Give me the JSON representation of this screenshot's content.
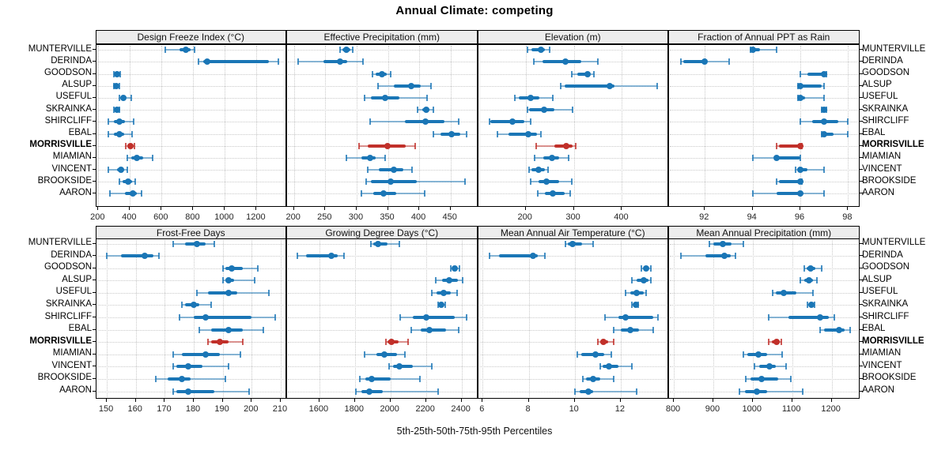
{
  "chart_data": {
    "type": "multi-panel percentile dotplot",
    "title": "Annual Climate: competing",
    "xlabel": "5th-25th-50th-75th-95th Percentiles",
    "percentiles": [
      5,
      25,
      50,
      75,
      95
    ],
    "legend_position": "none",
    "grid": "dotted",
    "categories": [
      "MUNTERVILLE",
      "DERINDA",
      "GOODSON",
      "ALSUP",
      "USEFUL",
      "SKRAINKA",
      "SHIRCLIFF",
      "EBAL",
      "MORRISVILLE",
      "MIAMIAN",
      "VINCENT",
      "BROOKSIDE",
      "AARON"
    ],
    "highlight": "MORRISVILLE",
    "colors": {
      "series": "#1a76b6",
      "highlight": "#c1302a",
      "gridline": "#c9c9c9",
      "strip_bg": "#ededed",
      "border": "#000000"
    },
    "panels": [
      {
        "label": "Design Freeze Index (°C)",
        "grid_row": 0,
        "grid_col": 0,
        "ticks": [
          200,
          400,
          600,
          800,
          1000,
          1200
        ],
        "xlim": [
          186,
          1393
        ],
        "series": [
          [
            625,
            715,
            755,
            785,
            810
          ],
          [
            835,
            865,
            890,
            1280,
            1340
          ],
          [
            300,
            306,
            317,
            328,
            338
          ],
          [
            300,
            306,
            315,
            326,
            335
          ],
          [
            333,
            342,
            358,
            380,
            408
          ],
          [
            300,
            306,
            317,
            326,
            333
          ],
          [
            262,
            300,
            333,
            367,
            425
          ],
          [
            262,
            300,
            333,
            362,
            412
          ],
          [
            375,
            387,
            405,
            420,
            430
          ],
          [
            383,
            408,
            442,
            483,
            542
          ],
          [
            262,
            317,
            342,
            362,
            383
          ],
          [
            333,
            355,
            388,
            412,
            433
          ],
          [
            272,
            367,
            417,
            442,
            475
          ]
        ]
      },
      {
        "label": "Effective Precipitation (mm)",
        "grid_row": 0,
        "grid_col": 1,
        "ticks": [
          200,
          250,
          300,
          350,
          400,
          450
        ],
        "xlim": [
          189,
          494
        ],
        "series": [
          [
            274,
            277,
            284,
            290,
            294
          ],
          [
            207,
            247,
            273,
            285,
            310
          ],
          [
            325,
            331,
            340,
            348,
            355
          ],
          [
            334,
            360,
            387,
            402,
            419
          ],
          [
            313,
            323,
            346,
            369,
            413
          ],
          [
            397,
            405,
            411,
            416,
            423
          ],
          [
            321,
            377,
            410,
            440,
            463
          ],
          [
            423,
            434,
            451,
            466,
            475
          ],
          [
            304,
            318,
            349,
            378,
            394
          ],
          [
            284,
            308,
            321,
            331,
            346
          ],
          [
            318,
            335,
            360,
            375,
            389
          ],
          [
            315,
            323,
            355,
            396,
            473
          ],
          [
            308,
            327,
            343,
            363,
            409
          ]
        ]
      },
      {
        "label": "Elevation (m)",
        "grid_row": 0,
        "grid_col": 2,
        "ticks": [
          200,
          300,
          400
        ],
        "xlim": [
          101,
          498
        ],
        "series": [
          [
            204,
            212,
            231,
            240,
            249
          ],
          [
            216,
            235,
            282,
            315,
            350
          ],
          [
            296,
            308,
            329,
            336,
            342
          ],
          [
            273,
            281,
            374,
            385,
            474
          ],
          [
            178,
            185,
            211,
            229,
            256
          ],
          [
            204,
            207,
            238,
            259,
            297
          ],
          [
            124,
            127,
            173,
            198,
            211
          ],
          [
            142,
            165,
            206,
            223,
            231
          ],
          [
            222,
            260,
            285,
            298,
            304
          ],
          [
            218,
            237,
            255,
            270,
            289
          ],
          [
            207,
            212,
            227,
            240,
            247
          ],
          [
            211,
            226,
            243,
            270,
            296
          ],
          [
            225,
            240,
            257,
            281,
            293
          ]
        ]
      },
      {
        "label": "Fraction of Annual PPT as Rain",
        "grid_row": 0,
        "grid_col": 3,
        "ticks": [
          92,
          94,
          96,
          98
        ],
        "xlim": [
          90.5,
          98.5
        ],
        "series": [
          [
            93.9,
            94,
            94,
            94.3,
            95
          ],
          [
            91,
            91.1,
            92,
            92.1,
            93
          ],
          [
            96,
            96.3,
            97,
            97,
            97.1
          ],
          [
            95.9,
            96,
            96,
            96.9,
            97
          ],
          [
            95.9,
            96,
            96,
            96.2,
            97
          ],
          [
            96.9,
            97,
            97,
            97,
            97.1
          ],
          [
            96,
            96.5,
            97,
            97.6,
            98
          ],
          [
            96.9,
            97,
            97,
            97.4,
            98
          ],
          [
            95,
            95.1,
            96,
            96,
            96.05
          ],
          [
            94,
            95,
            95,
            96,
            96
          ],
          [
            95.8,
            96,
            96,
            96.3,
            97
          ],
          [
            95,
            95.1,
            96,
            96,
            96.05
          ],
          [
            94,
            95,
            96,
            96.1,
            97
          ]
        ]
      },
      {
        "label": "Frost-Free Days",
        "grid_row": 1,
        "grid_col": 0,
        "ticks": [
          150,
          160,
          170,
          180,
          190,
          200,
          210
        ],
        "xlim": [
          146.3,
          212.2
        ],
        "series": [
          [
            173,
            177,
            181,
            184,
            187
          ],
          [
            150,
            155,
            163,
            166,
            168
          ],
          [
            190,
            191,
            193,
            197,
            202
          ],
          [
            190,
            191,
            192,
            194,
            201
          ],
          [
            181,
            185,
            192,
            195,
            206
          ],
          [
            176,
            177,
            180,
            182,
            186
          ],
          [
            175,
            180,
            184,
            200,
            208
          ],
          [
            182,
            186,
            192,
            197,
            204
          ],
          [
            185,
            186,
            189,
            192,
            197
          ],
          [
            173,
            176,
            184,
            189,
            196
          ],
          [
            173,
            174,
            178,
            183,
            192
          ],
          [
            167,
            171,
            176,
            179,
            191
          ],
          [
            173,
            174,
            178,
            187,
            199
          ]
        ]
      },
      {
        "label": "Growing Degree Days (°C)",
        "grid_row": 1,
        "grid_col": 1,
        "ticks": [
          1600,
          1800,
          2000,
          2200,
          2400
        ],
        "xlim": [
          1418,
          2493
        ],
        "series": [
          [
            1890,
            1905,
            1930,
            1985,
            2050
          ],
          [
            1477,
            1525,
            1665,
            1705,
            1740
          ],
          [
            2341,
            2350,
            2363,
            2375,
            2390
          ],
          [
            2256,
            2290,
            2330,
            2378,
            2404
          ],
          [
            2234,
            2260,
            2300,
            2340,
            2375
          ],
          [
            2267,
            2277,
            2286,
            2296,
            2308
          ],
          [
            2056,
            2126,
            2200,
            2363,
            2430
          ],
          [
            2115,
            2170,
            2219,
            2311,
            2382
          ],
          [
            1975,
            1985,
            2007,
            2044,
            2100
          ],
          [
            1852,
            1919,
            1967,
            2037,
            2081
          ],
          [
            1993,
            2015,
            2049,
            2126,
            2234
          ],
          [
            1827,
            1859,
            1893,
            2000,
            2167
          ],
          [
            1804,
            1837,
            1879,
            1956,
            2267
          ]
        ]
      },
      {
        "label": "Mean Annual Air Temperature (°C)",
        "grid_row": 1,
        "grid_col": 2,
        "ticks": [
          6,
          8,
          10,
          12
        ],
        "xlim": [
          5.8,
          14.1
        ],
        "series": [
          [
            9.6,
            9.7,
            9.9,
            10.3,
            10.8
          ],
          [
            6.3,
            6.7,
            8.2,
            8.4,
            8.7
          ],
          [
            12.9,
            13.0,
            13.1,
            13.2,
            13.3
          ],
          [
            12.5,
            12.7,
            13.0,
            13.2,
            13.3
          ],
          [
            12.2,
            12.4,
            12.7,
            13.0,
            13.1
          ],
          [
            12.5,
            12.55,
            12.65,
            12.7,
            12.75
          ],
          [
            11.3,
            11.9,
            12.2,
            13.4,
            13.6
          ],
          [
            11.7,
            12.0,
            12.4,
            12.8,
            13.4
          ],
          [
            11.0,
            11.1,
            11.25,
            11.45,
            11.7
          ],
          [
            10.1,
            10.3,
            10.9,
            11.3,
            11.6
          ],
          [
            11.1,
            11.2,
            11.5,
            11.9,
            12.5
          ],
          [
            10.35,
            10.5,
            10.8,
            11.1,
            11.7
          ],
          [
            10.0,
            10.2,
            10.6,
            10.8,
            12.7
          ]
        ]
      },
      {
        "label": "Mean Annual Precipitation (mm)",
        "grid_row": 1,
        "grid_col": 3,
        "ticks": [
          800,
          900,
          1000,
          1100,
          1200
        ],
        "xlim": [
          788,
          1272
        ],
        "series": [
          [
            890,
            900,
            925,
            947,
            977
          ],
          [
            817,
            880,
            929,
            944,
            956
          ],
          [
            1130,
            1137,
            1147,
            1158,
            1175
          ],
          [
            1121,
            1130,
            1143,
            1152,
            1163
          ],
          [
            1050,
            1058,
            1078,
            1111,
            1153
          ],
          [
            1138,
            1142,
            1148,
            1153,
            1157
          ],
          [
            1041,
            1091,
            1171,
            1193,
            1207
          ],
          [
            1170,
            1181,
            1218,
            1234,
            1247
          ],
          [
            1041,
            1048,
            1061,
            1068,
            1073
          ],
          [
            977,
            987,
            1015,
            1037,
            1074
          ],
          [
            1004,
            1017,
            1043,
            1058,
            1084
          ],
          [
            983,
            994,
            1023,
            1064,
            1096
          ],
          [
            967,
            981,
            1010,
            1037,
            1126
          ]
        ]
      }
    ]
  }
}
